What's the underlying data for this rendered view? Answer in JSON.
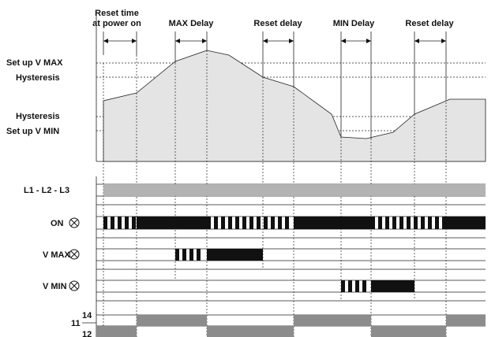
{
  "top_labels": {
    "reset_time_line1": "Reset time",
    "reset_time_line2": "at power on",
    "max_delay": "MAX Delay",
    "reset_delay_1": "Reset delay",
    "min_delay": "MIN Delay",
    "reset_delay_2": "Reset delay"
  },
  "levels": {
    "setup_vmax": "Set up V MAX",
    "hysteresis_high": "Hysteresis",
    "hysteresis_low": "Hysteresis",
    "setup_vmin": "Set up V MIN"
  },
  "signals": {
    "l1l2l3": "L1 - L2 - L3",
    "on": "ON",
    "vmax": "V MAX",
    "vmin": "V MIN"
  },
  "relay": {
    "pin14": "14",
    "pin11": "11",
    "pin12": "12"
  },
  "colors": {
    "waveform_fill": "#e4e4e4",
    "bar_dark": "#111111",
    "bar_gray": "#8c8c8c",
    "bar_light": "#b3b3b3"
  }
}
